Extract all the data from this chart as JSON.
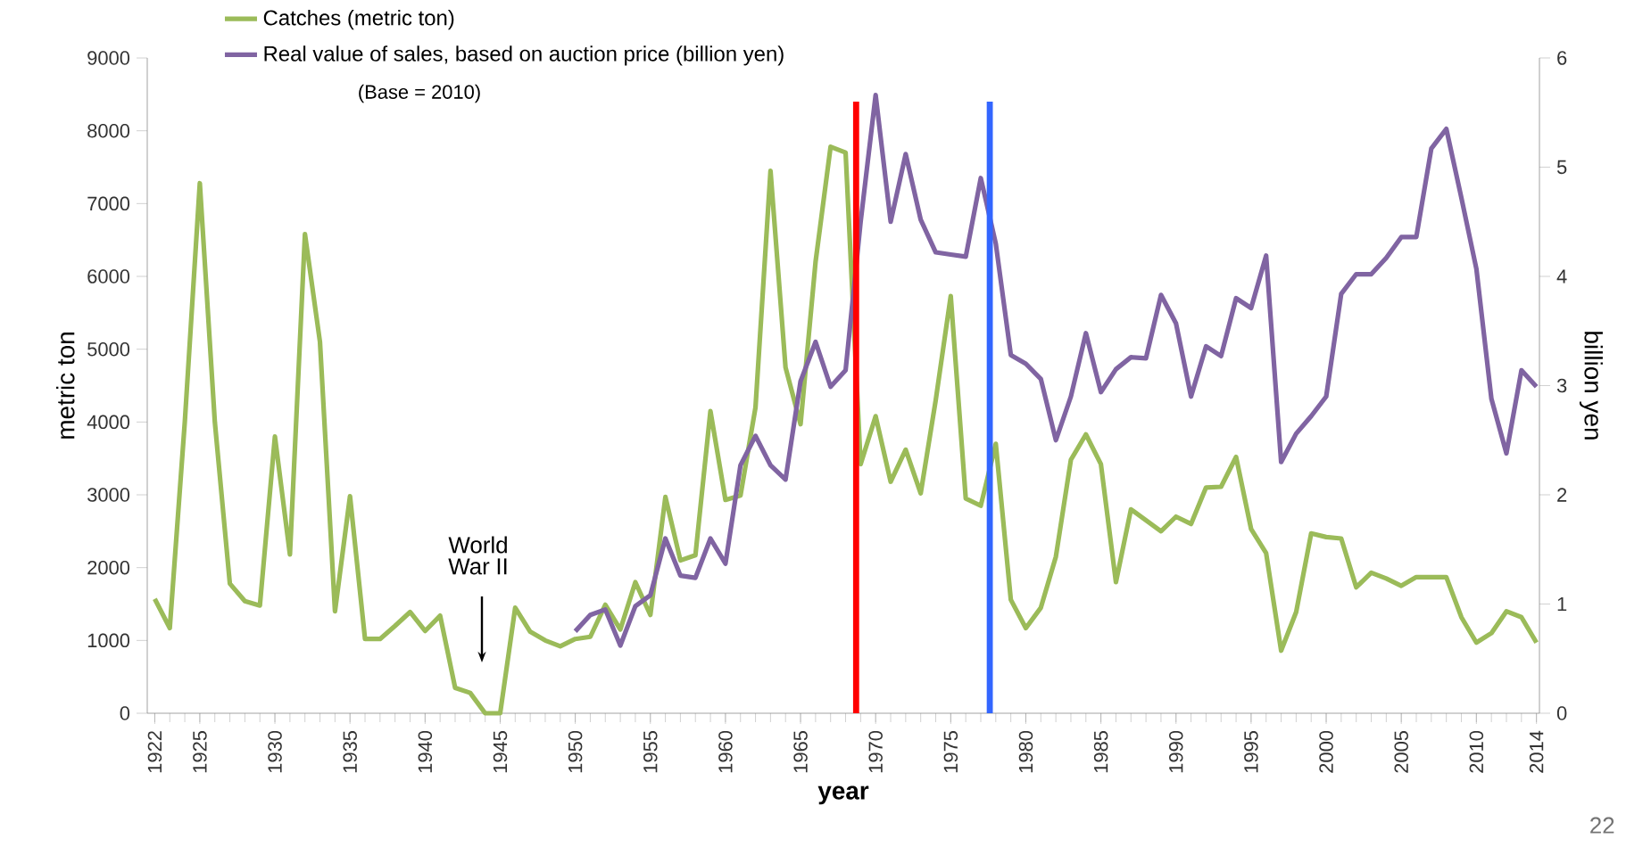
{
  "chart_data": {
    "type": "line",
    "xlabel": "year",
    "ylabel": "metric ton",
    "y2label": "billion yen",
    "x": [
      1922,
      1923,
      1924,
      1925,
      1926,
      1927,
      1928,
      1929,
      1930,
      1931,
      1932,
      1933,
      1934,
      1935,
      1936,
      1937,
      1938,
      1939,
      1940,
      1941,
      1942,
      1943,
      1944,
      1945,
      1946,
      1947,
      1948,
      1949,
      1950,
      1951,
      1952,
      1953,
      1954,
      1955,
      1956,
      1957,
      1958,
      1959,
      1960,
      1961,
      1962,
      1963,
      1964,
      1965,
      1966,
      1967,
      1968,
      1969,
      1970,
      1971,
      1972,
      1973,
      1974,
      1975,
      1976,
      1977,
      1978,
      1979,
      1980,
      1981,
      1982,
      1983,
      1984,
      1985,
      1986,
      1987,
      1988,
      1989,
      1990,
      1991,
      1992,
      1993,
      1994,
      1995,
      1996,
      1997,
      1998,
      1999,
      2000,
      2001,
      2002,
      2003,
      2004,
      2005,
      2006,
      2007,
      2008,
      2009,
      2010,
      2011,
      2012,
      2013,
      2014
    ],
    "series": [
      {
        "name": "Catches (metric ton)",
        "color": "#9bbb59",
        "values": [
          1570,
          1170,
          4000,
          7280,
          4000,
          1780,
          1540,
          1480,
          3800,
          2180,
          6580,
          5100,
          1400,
          2980,
          1020,
          1020,
          1200,
          1390,
          1130,
          1340,
          350,
          280,
          0,
          0,
          1450,
          1120,
          1000,
          920,
          1020,
          1050,
          1490,
          1150,
          1800,
          1350,
          2970,
          2100,
          2170,
          4150,
          2930,
          2990,
          4200,
          7450,
          4750,
          3970,
          6200,
          7780,
          7700,
          3420,
          4080,
          3180,
          3620,
          3020,
          4300,
          5730,
          2950,
          2850,
          3700,
          1560,
          1170,
          1450,
          2150,
          3480,
          3830,
          3420,
          1800,
          2800,
          2650,
          2500,
          2700,
          2600,
          3100,
          3110,
          3520,
          2530,
          2200,
          860,
          1390,
          2470,
          2420,
          2400,
          1730,
          1930,
          1850,
          1750,
          1870,
          1870,
          1870,
          1320,
          970,
          1100,
          1400,
          1320,
          970
        ]
      },
      {
        "name": "Real value of sales, based on auction price (billion yen)",
        "color": "#8064a2",
        "axis": "y2",
        "values": [
          null,
          null,
          null,
          null,
          null,
          null,
          null,
          null,
          null,
          null,
          null,
          null,
          null,
          null,
          null,
          null,
          null,
          null,
          null,
          null,
          null,
          null,
          null,
          null,
          null,
          null,
          null,
          null,
          0.75,
          0.9,
          0.95,
          0.62,
          0.98,
          1.08,
          1.6,
          1.26,
          1.24,
          1.6,
          1.37,
          2.27,
          2.54,
          2.27,
          2.14,
          3.04,
          3.4,
          2.99,
          3.14,
          4.5,
          5.66,
          4.5,
          5.12,
          4.52,
          4.22,
          4.2,
          4.18,
          4.9,
          4.3,
          3.28,
          3.2,
          3.06,
          2.5,
          2.9,
          3.48,
          2.94,
          3.15,
          3.26,
          3.25,
          3.83,
          3.57,
          2.9,
          3.36,
          3.27,
          3.8,
          3.71,
          4.19,
          2.3,
          2.56,
          2.72,
          2.9,
          3.84,
          4.02,
          4.02,
          4.17,
          4.36,
          4.36,
          5.17,
          5.35,
          4.72,
          4.07,
          2.88,
          2.38,
          3.14,
          2.99
        ]
      }
    ],
    "xlim": [
      1921.5,
      2014.2
    ],
    "ylim": [
      0,
      9000
    ],
    "y2lim": [
      0,
      6
    ],
    "xticks": [
      1922,
      1925,
      1930,
      1935,
      1940,
      1945,
      1950,
      1955,
      1960,
      1965,
      1970,
      1975,
      1980,
      1985,
      1990,
      1995,
      2000,
      2005,
      2010,
      2014
    ],
    "yticks": [
      0,
      1000,
      2000,
      3000,
      4000,
      5000,
      6000,
      7000,
      8000,
      9000
    ],
    "y2ticks": [
      0,
      1,
      2,
      3,
      4,
      5,
      6
    ],
    "legend": "top left",
    "ref_lines": [
      {
        "axis": "x",
        "value": 1968.7,
        "color": "#ff0000"
      },
      {
        "axis": "x",
        "value": 1977.6,
        "color": "#3366ff"
      }
    ],
    "annotations": [
      "(Base = 2010)",
      "World War II",
      "22"
    ]
  }
}
